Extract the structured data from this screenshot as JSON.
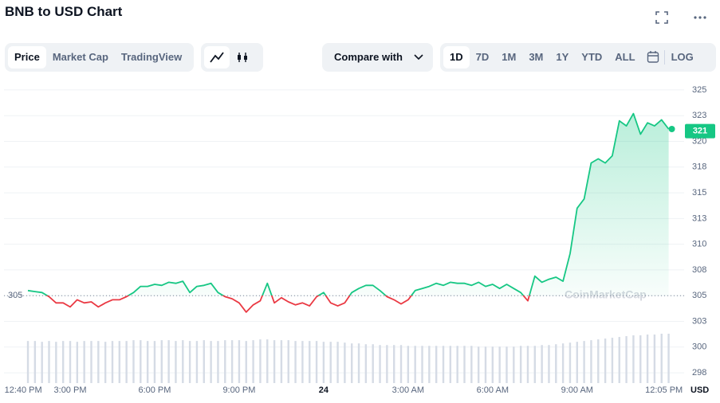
{
  "header": {
    "title": "BNB to USD Chart"
  },
  "toolbar": {
    "views": [
      "Price",
      "Market Cap",
      "TradingView"
    ],
    "compare": "Compare with",
    "ranges": [
      "1D",
      "7D",
      "1M",
      "3M",
      "1Y",
      "YTD",
      "ALL"
    ],
    "log": "LOG"
  },
  "chart_data": {
    "type": "line",
    "x": [
      13.5,
      13.75,
      14,
      14.25,
      14.5,
      14.75,
      15,
      15.25,
      15.5,
      15.75,
      16,
      16.25,
      16.5,
      16.75,
      17,
      17.25,
      17.5,
      17.75,
      18,
      18.25,
      18.5,
      18.75,
      19,
      19.25,
      19.5,
      19.75,
      20,
      20.25,
      20.5,
      20.75,
      21,
      21.25,
      21.5,
      21.75,
      22,
      22.25,
      22.5,
      22.75,
      23,
      23.25,
      23.5,
      23.75,
      24,
      24.25,
      24.5,
      24.75,
      25,
      25.25,
      25.5,
      25.75,
      26,
      26.25,
      26.5,
      26.75,
      27,
      27.25,
      27.5,
      27.75,
      28,
      28.25,
      28.5,
      28.75,
      29,
      29.25,
      29.5,
      29.75,
      30,
      30.25,
      30.5,
      30.75,
      31,
      31.25,
      31.5,
      31.75,
      32,
      32.25,
      32.5,
      32.75,
      33,
      33.25,
      33.5,
      33.75,
      34,
      34.25,
      34.5,
      34.75,
      35,
      35.25,
      35.5,
      35.75,
      36,
      36.25
    ],
    "values": [
      305.5,
      305.4,
      305.3,
      304.9,
      304.3,
      304.3,
      303.9,
      304.6,
      304.3,
      304.4,
      303.9,
      304.3,
      304.6,
      304.6,
      304.9,
      305.3,
      305.9,
      305.9,
      306.1,
      306.0,
      306.3,
      306.2,
      306.4,
      305.3,
      305.9,
      306.0,
      306.2,
      305.3,
      304.9,
      304.7,
      304.3,
      303.4,
      304.1,
      304.5,
      306.2,
      304.3,
      304.8,
      304.4,
      304.1,
      304.3,
      304.0,
      304.9,
      305.3,
      304.3,
      304.0,
      304.3,
      305.3,
      305.7,
      306.0,
      306.0,
      305.5,
      304.9,
      304.6,
      304.2,
      304.6,
      305.5,
      305.7,
      305.9,
      306.2,
      306.0,
      306.3,
      306.2,
      306.2,
      306.0,
      306.3,
      305.9,
      306.1,
      305.7,
      306.1,
      305.7,
      305.3,
      304.5,
      306.9,
      306.3,
      306.6,
      306.8,
      306.4,
      309.1,
      313.5,
      314.4,
      317.9,
      318.3,
      317.9,
      318.6,
      322.0,
      321.5,
      322.7,
      320.7,
      321.8,
      321.5,
      322.1,
      321.2
    ],
    "volume": [
      52,
      52,
      51,
      52,
      51,
      52,
      52,
      51,
      52,
      52,
      52,
      51,
      52,
      52,
      52,
      53,
      53,
      52,
      52,
      53,
      53,
      52,
      53,
      52,
      52,
      53,
      52,
      52,
      53,
      53,
      53,
      52,
      53,
      54,
      54,
      53,
      53,
      53,
      52,
      52,
      52,
      52,
      51,
      51,
      51,
      50,
      49,
      49,
      48,
      48,
      47,
      47,
      47,
      47,
      46,
      46,
      46,
      46,
      46,
      46,
      46,
      46,
      46,
      46,
      45,
      45,
      45,
      45,
      45,
      45,
      46,
      46,
      46,
      47,
      47,
      48,
      49,
      50,
      51,
      52,
      53,
      54,
      55,
      56,
      57,
      58,
      59,
      59,
      60,
      60,
      61,
      61
    ],
    "color_up": "#16c784",
    "color_down": "#ea3943",
    "volume_color": "#d5dbe5",
    "baseline": 305,
    "current_price": 321,
    "xlim": [
      12.65,
      36.8
    ],
    "xticks": [
      {
        "value": 12.667,
        "label": "12:40 PM"
      },
      {
        "value": 15,
        "label": "3:00 PM"
      },
      {
        "value": 18,
        "label": "6:00 PM"
      },
      {
        "value": 21,
        "label": "9:00 PM"
      },
      24,
      {
        "value": 27,
        "label": "3:00 AM"
      },
      {
        "value": 30,
        "label": "6:00 AM"
      },
      {
        "value": 33,
        "label": "9:00 AM"
      },
      {
        "value": 36.083,
        "label": "12:05 PM"
      }
    ],
    "ylim": [
      296.5,
      326
    ],
    "yticks": [
      {
        "value": 297.5,
        "label": "298"
      },
      300,
      {
        "value": 302.5,
        "label": "303"
      },
      305,
      {
        "value": 307.5,
        "label": "308"
      },
      310,
      {
        "value": 312.5,
        "label": "313"
      },
      315,
      {
        "value": 317.5,
        "label": "318"
      },
      320,
      {
        "value": 322.5,
        "label": "323"
      },
      325
    ],
    "grid": true,
    "y_unit": "USD",
    "watermark": "CoinMarketCap"
  }
}
